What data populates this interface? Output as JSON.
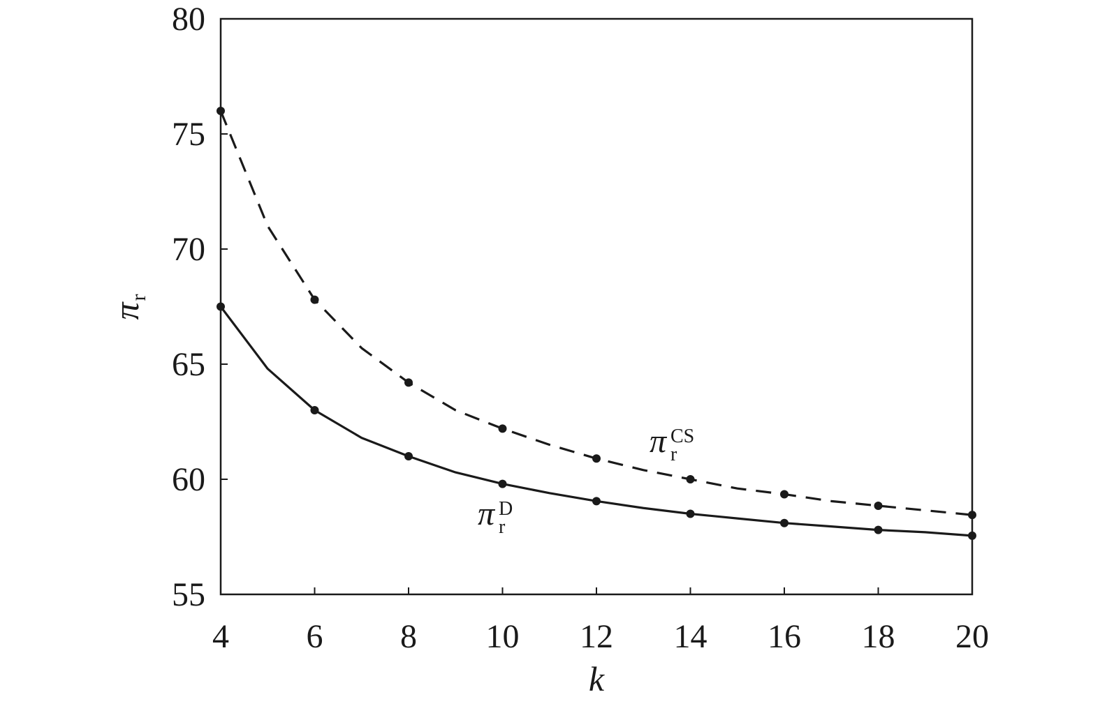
{
  "chart_data": {
    "type": "line",
    "title": "",
    "xlabel": "k",
    "ylabel": {
      "main": "π",
      "sub": "r"
    },
    "xlim": [
      4,
      20
    ],
    "ylim": [
      55,
      80
    ],
    "xticks": [
      "4",
      "6",
      "8",
      "10",
      "12",
      "14",
      "16",
      "18",
      "20"
    ],
    "yticks": [
      "55",
      "60",
      "65",
      "70",
      "75",
      "80"
    ],
    "grid": false,
    "legend": "none",
    "series": [
      {
        "key": "cs",
        "label": {
          "main": "π",
          "sub": "r",
          "sup": "CS"
        },
        "style": "dashed",
        "color": "#1a1a1a",
        "x": [
          4,
          5,
          6,
          7,
          8,
          9,
          10,
          11,
          12,
          13,
          14,
          15,
          16,
          17,
          18,
          19,
          20
        ],
        "y": [
          76.0,
          71.0,
          67.8,
          65.7,
          64.2,
          63.0,
          62.2,
          61.5,
          60.9,
          60.4,
          60.0,
          59.6,
          59.35,
          59.05,
          58.85,
          58.65,
          58.45
        ],
        "markers_x": [
          4,
          6,
          8,
          10,
          12,
          14,
          16,
          18,
          20
        ],
        "markers_y": [
          76.0,
          67.8,
          64.2,
          62.2,
          60.9,
          60.0,
          59.35,
          58.85,
          58.45
        ]
      },
      {
        "key": "d",
        "label": {
          "main": "π",
          "sub": "r",
          "sup": "D"
        },
        "style": "solid",
        "color": "#1a1a1a",
        "x": [
          4,
          5,
          6,
          7,
          8,
          9,
          10,
          11,
          12,
          13,
          14,
          15,
          16,
          17,
          18,
          19,
          20
        ],
        "y": [
          67.5,
          64.8,
          63.0,
          61.8,
          61.0,
          60.3,
          59.8,
          59.4,
          59.05,
          58.75,
          58.5,
          58.3,
          58.1,
          57.95,
          57.8,
          57.7,
          57.55
        ],
        "markers_x": [
          4,
          6,
          8,
          10,
          12,
          14,
          16,
          18,
          20
        ],
        "markers_y": [
          67.5,
          63.0,
          61.0,
          59.8,
          59.05,
          58.5,
          58.1,
          57.8,
          57.55
        ]
      }
    ]
  }
}
